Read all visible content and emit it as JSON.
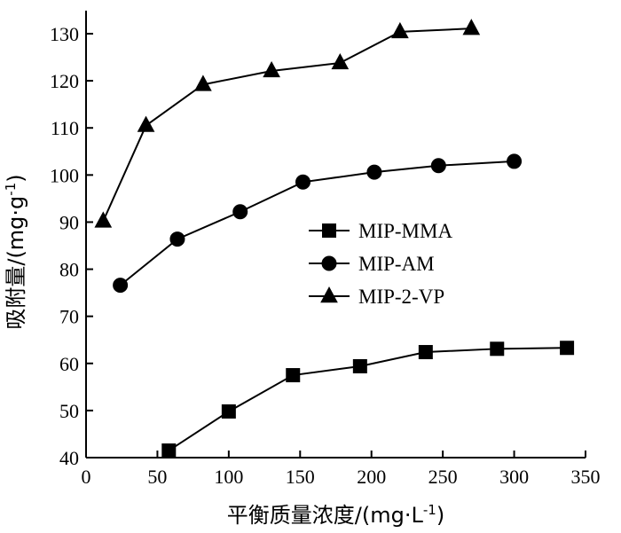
{
  "chart_data": {
    "type": "line",
    "xlabel": "平衡质量浓度/(mg·L",
    "xlabel_sup": "-1",
    "xlabel_close": ")",
    "ylabel": "吸附量/(mg·g",
    "ylabel_sup": "-1",
    "ylabel_close": ")",
    "xlim": [
      0,
      350
    ],
    "ylim": [
      40,
      135
    ],
    "xticks": [
      0,
      50,
      100,
      150,
      200,
      250,
      300,
      350
    ],
    "yticks": [
      40,
      50,
      60,
      70,
      80,
      90,
      100,
      110,
      120,
      130
    ],
    "grid": false,
    "legend_position": "center-right",
    "series": [
      {
        "name": "MIP-MMA",
        "marker": "square",
        "x": [
          58,
          100,
          145,
          192,
          238,
          288,
          337
        ],
        "y": [
          41.5,
          49.8,
          57.5,
          59.4,
          62.4,
          63.1,
          63.3
        ]
      },
      {
        "name": "MIP-AM",
        "marker": "circle",
        "x": [
          24,
          64,
          108,
          152,
          202,
          247,
          300
        ],
        "y": [
          76.6,
          86.4,
          92.2,
          98.5,
          100.6,
          102.0,
          102.9
        ]
      },
      {
        "name": "MIP-2-VP",
        "marker": "triangle",
        "x": [
          12,
          42,
          82,
          130,
          178,
          220,
          270
        ],
        "y": [
          90.2,
          110.5,
          119.2,
          122.1,
          123.8,
          130.4,
          131.1
        ]
      }
    ]
  }
}
